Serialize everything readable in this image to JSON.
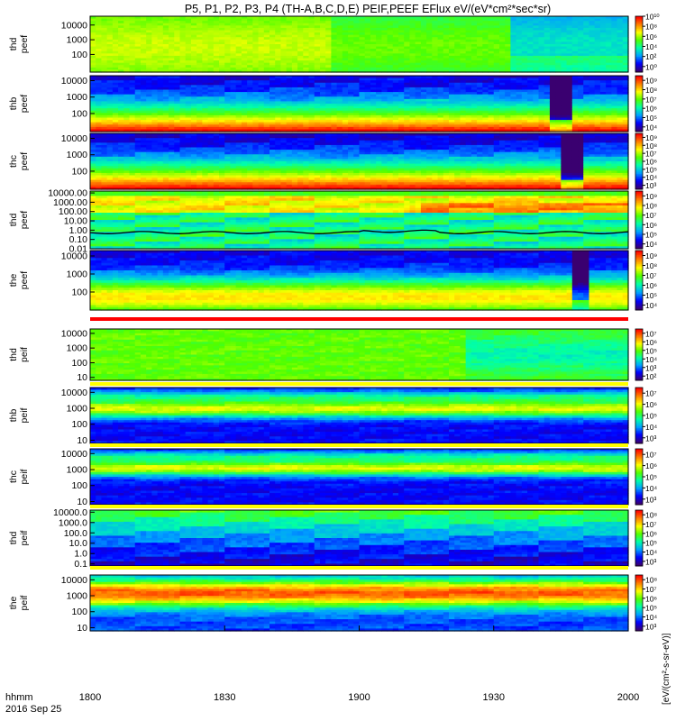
{
  "chart_data": {
    "type": "heatmap",
    "title": "P5, P1, P2, P3, P4 (TH-A,B,C,D,E) PEIF,PEEF EFlux eV/(eV*cm²*sec*sr)",
    "footer": {
      "time_label": "hhmm",
      "date_label": "2016 Sep 25"
    },
    "x_axis": {
      "ticks": [
        "1800",
        "1830",
        "1900",
        "1930",
        "2000"
      ]
    },
    "colorbar_units": "[eV/(cm²-s-sr-eV)]",
    "colorscale": [
      "#3a0070",
      "#0000ff",
      "#00a0ff",
      "#00ffaa",
      "#50ff00",
      "#ffff00",
      "#ff8000",
      "#ff0000"
    ],
    "panels": [
      {
        "name": "thd peef",
        "label1": "thd",
        "label2": "peef",
        "yticks": [
          "10000",
          "1000",
          "100"
        ],
        "yticklog": [
          4,
          3,
          2
        ],
        "ylog_range": [
          0.8,
          4.6
        ],
        "cbar_ticks": [
          "10¹⁰",
          "10⁸",
          "10⁶",
          "10⁴",
          "10²",
          "10⁰"
        ],
        "cbar_range": [
          0,
          10
        ]
      },
      {
        "name": "thb peef",
        "label1": "thb",
        "label2": "peef",
        "yticks": [
          "10000",
          "1000",
          "100"
        ],
        "yticklog": [
          4,
          3,
          2
        ],
        "ylog_range": [
          0.9,
          4.3
        ],
        "cbar_ticks": [
          "10⁹",
          "10⁸",
          "10⁷",
          "10⁶",
          "10⁵",
          "10⁴"
        ],
        "cbar_range": [
          3.5,
          9.5
        ]
      },
      {
        "name": "thc peef",
        "label1": "thc",
        "label2": "peef",
        "yticks": [
          "10000",
          "1000",
          "100"
        ],
        "yticklog": [
          4,
          3,
          2
        ],
        "ylog_range": [
          0.9,
          4.3
        ],
        "cbar_ticks": [
          "10⁹",
          "10⁸",
          "10⁷",
          "10⁶",
          "10⁵",
          "10⁴",
          "10³"
        ],
        "cbar_range": [
          2.5,
          9.5
        ]
      },
      {
        "name": "thd peef",
        "label1": "thd",
        "label2": "peef",
        "yticks": [
          "10000.00",
          "1000.00",
          "100.00",
          "10.00",
          "1.00",
          "0.10",
          "0.01"
        ],
        "yticklog": [
          4,
          3,
          2,
          1,
          0,
          -1,
          -2
        ],
        "ylog_range": [
          -2,
          4.2
        ],
        "cbar_ticks": [
          "10⁹",
          "10⁸",
          "10⁷",
          "10⁶",
          "10⁵",
          "10⁴"
        ],
        "cbar_range": [
          3.5,
          9.5
        ]
      },
      {
        "name": "the peef",
        "label1": "the",
        "label2": "peef",
        "yticks": [
          "10000",
          "1000",
          "100"
        ],
        "yticklog": [
          4,
          3,
          2
        ],
        "ylog_range": [
          1.0,
          4.3
        ],
        "cbar_ticks": [
          "10⁹",
          "10⁸",
          "10⁷",
          "10⁶",
          "10⁵",
          "10⁴"
        ],
        "cbar_range": [
          3.5,
          9.5
        ]
      },
      {
        "name": "thd peif",
        "label1": "thd",
        "label2": "peif",
        "yticks": [
          "10000",
          "1000",
          "100",
          "10"
        ],
        "yticklog": [
          4,
          3,
          2,
          1
        ],
        "ylog_range": [
          0.8,
          4.3
        ],
        "cbar_ticks": [
          "10⁷",
          "10⁶",
          "10⁵",
          "10⁴",
          "10³",
          "10²"
        ],
        "cbar_range": [
          1.5,
          7.5
        ]
      },
      {
        "name": "thb peif",
        "label1": "thb",
        "label2": "peif",
        "yticks": [
          "10000",
          "1000",
          "100",
          "10"
        ],
        "yticklog": [
          4,
          3,
          2,
          1
        ],
        "ylog_range": [
          0.8,
          4.3
        ],
        "cbar_ticks": [
          "10⁷",
          "10⁶",
          "10⁵",
          "10⁴",
          "10³"
        ],
        "cbar_range": [
          2.5,
          7.5
        ]
      },
      {
        "name": "thc peif",
        "label1": "thc",
        "label2": "peif",
        "yticks": [
          "10000",
          "1000",
          "100",
          "10"
        ],
        "yticklog": [
          4,
          3,
          2,
          1
        ],
        "ylog_range": [
          0.8,
          4.3
        ],
        "cbar_ticks": [
          "10⁷",
          "10⁶",
          "10⁵",
          "10⁴",
          "10³"
        ],
        "cbar_range": [
          2.5,
          7.5
        ]
      },
      {
        "name": "thd peif",
        "label1": "thd",
        "label2": "peif",
        "yticks": [
          "10000.0",
          "1000.0",
          "100.0",
          "10.0",
          "1.0",
          "0.1"
        ],
        "yticklog": [
          4,
          3,
          2,
          1,
          0,
          -1
        ],
        "ylog_range": [
          -1.2,
          4.2
        ],
        "cbar_ticks": [
          "10⁸",
          "10⁷",
          "10⁶",
          "10⁵",
          "10⁴",
          "10³"
        ],
        "cbar_range": [
          2.5,
          8.5
        ]
      },
      {
        "name": "the peif",
        "label1": "the",
        "label2": "peif",
        "yticks": [
          "10000",
          "1000",
          "100",
          "10"
        ],
        "yticklog": [
          4,
          3,
          2,
          1
        ],
        "ylog_range": [
          0.8,
          4.3
        ],
        "cbar_ticks": [
          "10⁸",
          "10⁷",
          "10⁶",
          "10⁵",
          "10⁴",
          "10³"
        ],
        "cbar_range": [
          2.5,
          8.5
        ]
      }
    ]
  }
}
